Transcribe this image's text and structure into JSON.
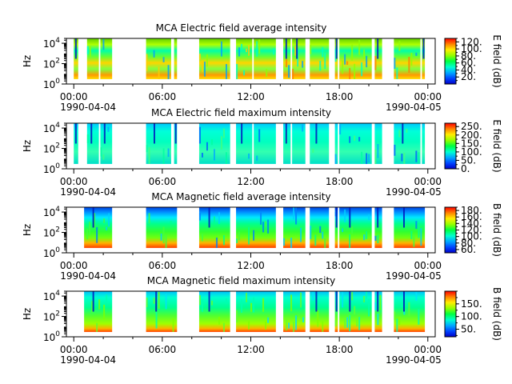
{
  "chart_data": [
    {
      "type": "heatmap",
      "title": "MCA  Electric field average intensity",
      "ylabel": "Hz",
      "y_scale": "log",
      "ylim": [
        1,
        30000
      ],
      "y_ticks": [
        {
          "value": 1,
          "base": "10",
          "exp": "0"
        },
        {
          "value": 100,
          "base": "10",
          "exp": "2"
        },
        {
          "value": 10000,
          "base": "10",
          "exp": "4"
        }
      ],
      "x_ticks": [
        "00:00",
        "06:00",
        "12:00",
        "18:00",
        "00:00"
      ],
      "x_tick_hours": [
        0,
        6,
        12,
        18,
        24
      ],
      "x_dates": [
        "1990-04-04",
        "1990-04-05"
      ],
      "xlim_hours": [
        -0.5,
        24.5
      ],
      "colorbar": {
        "label": "E field (dB)",
        "range": [
          0,
          130
        ],
        "ticks": [
          "20.",
          "40.",
          "60.",
          "80.",
          "100.",
          "120."
        ],
        "tick_values": [
          20,
          40,
          60,
          80,
          100,
          120
        ]
      },
      "data_intervals_hours": [
        [
          0.0,
          0.3
        ],
        [
          0.9,
          1.7
        ],
        [
          1.8,
          2.6
        ],
        [
          4.9,
          6.6
        ],
        [
          6.8,
          7.0
        ],
        [
          8.5,
          10.6
        ],
        [
          11.0,
          12.1
        ],
        [
          12.2,
          13.7
        ],
        [
          14.2,
          14.7
        ],
        [
          14.8,
          15.7
        ],
        [
          16.0,
          17.3
        ],
        [
          17.7,
          17.9
        ],
        [
          18.0,
          20.2
        ],
        [
          20.4,
          20.9
        ],
        [
          21.7,
          23.5
        ],
        [
          23.6,
          23.8
        ]
      ]
    },
    {
      "type": "heatmap",
      "title": "MCA  Electric field maximum intensity",
      "ylabel": "Hz",
      "y_scale": "log",
      "ylim": [
        1,
        30000
      ],
      "y_ticks": [
        {
          "value": 1,
          "base": "10",
          "exp": "0"
        },
        {
          "value": 100,
          "base": "10",
          "exp": "2"
        },
        {
          "value": 10000,
          "base": "10",
          "exp": "4"
        }
      ],
      "x_ticks": [
        "00:00",
        "06:00",
        "12:00",
        "18:00",
        "00:00"
      ],
      "x_tick_hours": [
        0,
        6,
        12,
        18,
        24
      ],
      "x_dates": [
        "1990-04-04",
        "1990-04-05"
      ],
      "xlim_hours": [
        -0.5,
        24.5
      ],
      "colorbar": {
        "label": "E field (dB)",
        "range": [
          0,
          270
        ],
        "ticks": [
          "0.",
          "50.",
          "100.",
          "150.",
          "200.",
          "250."
        ],
        "tick_values": [
          0,
          50,
          100,
          150,
          200,
          250
        ]
      },
      "data_intervals_hours": [
        [
          0.0,
          0.3
        ],
        [
          0.9,
          1.7
        ],
        [
          1.8,
          2.6
        ],
        [
          4.9,
          6.6
        ],
        [
          6.8,
          7.0
        ],
        [
          8.5,
          10.6
        ],
        [
          11.0,
          12.1
        ],
        [
          12.2,
          13.7
        ],
        [
          14.2,
          14.7
        ],
        [
          14.8,
          15.7
        ],
        [
          16.0,
          17.3
        ],
        [
          17.7,
          17.9
        ],
        [
          18.0,
          20.2
        ],
        [
          20.4,
          20.9
        ],
        [
          21.7,
          23.5
        ],
        [
          23.6,
          23.8
        ]
      ]
    },
    {
      "type": "heatmap",
      "title": "MCA  Magnetic field average intensity",
      "ylabel": "Hz",
      "y_scale": "log",
      "ylim": [
        1,
        30000
      ],
      "y_ticks": [
        {
          "value": 1,
          "base": "10",
          "exp": "0"
        },
        {
          "value": 100,
          "base": "10",
          "exp": "2"
        },
        {
          "value": 10000,
          "base": "10",
          "exp": "4"
        }
      ],
      "x_ticks": [
        "00:00",
        "06:00",
        "12:00",
        "18:00",
        "00:00"
      ],
      "x_tick_hours": [
        0,
        6,
        12,
        18,
        24
      ],
      "x_dates": [
        "1990-04-04",
        "1990-04-05"
      ],
      "xlim_hours": [
        -0.5,
        24.5
      ],
      "colorbar": {
        "label": "B field (dB)",
        "range": [
          50,
          190
        ],
        "ticks": [
          "60.",
          "80.",
          "100.",
          "120.",
          "140.",
          "160.",
          "180."
        ],
        "tick_values": [
          60,
          80,
          100,
          120,
          140,
          160,
          180
        ]
      },
      "data_intervals_hours": [
        [
          0.7,
          2.6
        ],
        [
          4.9,
          7.0
        ],
        [
          8.5,
          10.6
        ],
        [
          11.0,
          13.7
        ],
        [
          14.2,
          15.7
        ],
        [
          16.0,
          17.3
        ],
        [
          17.7,
          17.9
        ],
        [
          18.0,
          20.2
        ],
        [
          20.4,
          20.9
        ],
        [
          21.7,
          23.8
        ]
      ]
    },
    {
      "type": "heatmap",
      "title": "MCA  Magnetic field maximum intensity",
      "ylabel": "Hz",
      "y_scale": "log",
      "ylim": [
        1,
        30000
      ],
      "y_ticks": [
        {
          "value": 1,
          "base": "10",
          "exp": "0"
        },
        {
          "value": 100,
          "base": "10",
          "exp": "2"
        },
        {
          "value": 10000,
          "base": "10",
          "exp": "4"
        }
      ],
      "x_ticks": [
        "00:00",
        "06:00",
        "12:00",
        "18:00",
        "00:00"
      ],
      "x_tick_hours": [
        0,
        6,
        12,
        18,
        24
      ],
      "x_dates": [
        "1990-04-04",
        "1990-04-05"
      ],
      "xlim_hours": [
        -0.5,
        24.5
      ],
      "colorbar": {
        "label": "B field (dB)",
        "range": [
          20,
          200
        ],
        "ticks": [
          "50.",
          "100.",
          "150."
        ],
        "tick_values": [
          50,
          100,
          150
        ]
      },
      "data_intervals_hours": [
        [
          0.7,
          2.6
        ],
        [
          4.9,
          7.0
        ],
        [
          8.5,
          10.6
        ],
        [
          11.0,
          13.7
        ],
        [
          14.2,
          15.7
        ],
        [
          16.0,
          17.3
        ],
        [
          17.7,
          17.9
        ],
        [
          18.0,
          20.2
        ],
        [
          20.4,
          20.9
        ],
        [
          21.7,
          23.8
        ]
      ]
    }
  ]
}
